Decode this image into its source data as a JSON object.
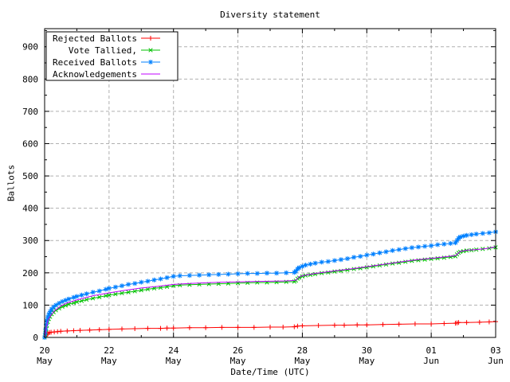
{
  "chart_data": {
    "type": "line",
    "title": "Diversity statement",
    "xlabel": "Date/Time (UTC)",
    "ylabel": "Ballots",
    "grid": true,
    "legend_position": "top-left",
    "x_unit": "days since 20 May 00:00 UTC",
    "xlim": [
      0,
      14
    ],
    "ylim": [
      0,
      956
    ],
    "y_major_ticks": [
      0,
      100,
      200,
      300,
      400,
      500,
      600,
      700,
      800,
      900
    ],
    "y_minor_step": 50,
    "x_major_ticks": [
      {
        "day": 0,
        "line1": "20",
        "line2": "May"
      },
      {
        "day": 2,
        "line1": "22",
        "line2": "May"
      },
      {
        "day": 4,
        "line1": "24",
        "line2": "May"
      },
      {
        "day": 6,
        "line1": "26",
        "line2": "May"
      },
      {
        "day": 8,
        "line1": "28",
        "line2": "May"
      },
      {
        "day": 10,
        "line1": "30",
        "line2": "May"
      },
      {
        "day": 12,
        "line1": "01",
        "line2": "Jun"
      },
      {
        "day": 14,
        "line1": "03",
        "line2": "Jun"
      }
    ],
    "x_minor_days": [
      1,
      3,
      5,
      7,
      9,
      11,
      13
    ],
    "colors": {
      "grid": "#b0b0b0",
      "border": "#000000",
      "rejected": "#ff0000",
      "tallied": "#00c000",
      "received": "#0080ff",
      "acknowledgements": "#c000ff"
    },
    "series": [
      {
        "name": "Rejected Ballots",
        "color": "#ff0000",
        "marker": "plus",
        "points": [
          [
            0,
            0
          ],
          [
            0.03,
            4
          ],
          [
            0.06,
            8
          ],
          [
            0.1,
            12
          ],
          [
            0.15,
            15
          ],
          [
            0.2,
            16
          ],
          [
            0.3,
            17
          ],
          [
            0.4,
            18
          ],
          [
            0.5,
            19
          ],
          [
            0.7,
            20
          ],
          [
            0.9,
            21
          ],
          [
            1.1,
            22
          ],
          [
            1.4,
            23
          ],
          [
            1.7,
            24
          ],
          [
            2.0,
            25
          ],
          [
            2.4,
            26
          ],
          [
            2.8,
            27
          ],
          [
            3.2,
            28
          ],
          [
            3.6,
            28
          ],
          [
            3.8,
            29
          ],
          [
            4.0,
            29
          ],
          [
            4.5,
            30
          ],
          [
            5.0,
            30
          ],
          [
            5.5,
            31
          ],
          [
            6.0,
            31
          ],
          [
            6.5,
            31
          ],
          [
            7.0,
            32
          ],
          [
            7.4,
            32
          ],
          [
            7.75,
            33
          ],
          [
            7.85,
            35
          ],
          [
            8.0,
            36
          ],
          [
            8.5,
            37
          ],
          [
            9.0,
            38
          ],
          [
            9.3,
            38
          ],
          [
            9.7,
            39
          ],
          [
            10.0,
            39
          ],
          [
            10.5,
            40
          ],
          [
            11.0,
            41
          ],
          [
            11.5,
            42
          ],
          [
            12.0,
            42
          ],
          [
            12.4,
            43
          ],
          [
            12.75,
            44
          ],
          [
            12.8,
            45
          ],
          [
            12.85,
            46
          ],
          [
            13.1,
            46
          ],
          [
            13.5,
            47
          ],
          [
            13.8,
            48
          ],
          [
            14.0,
            49
          ]
        ]
      },
      {
        "name": "Vote Tallied,",
        "color": "#00c000",
        "marker": "cross",
        "points": [
          [
            0,
            0
          ],
          [
            0.02,
            6
          ],
          [
            0.03,
            14
          ],
          [
            0.05,
            26
          ],
          [
            0.07,
            37
          ],
          [
            0.1,
            48
          ],
          [
            0.13,
            57
          ],
          [
            0.17,
            64
          ],
          [
            0.22,
            72
          ],
          [
            0.28,
            78
          ],
          [
            0.35,
            84
          ],
          [
            0.45,
            90
          ],
          [
            0.55,
            95
          ],
          [
            0.65,
            99
          ],
          [
            0.75,
            103
          ],
          [
            0.9,
            107
          ],
          [
            1.0,
            110
          ],
          [
            1.15,
            113
          ],
          [
            1.3,
            117
          ],
          [
            1.5,
            121
          ],
          [
            1.7,
            125
          ],
          [
            1.9,
            129
          ],
          [
            2.0,
            131
          ],
          [
            2.2,
            134
          ],
          [
            2.4,
            137
          ],
          [
            2.6,
            140
          ],
          [
            2.8,
            143
          ],
          [
            3.0,
            146
          ],
          [
            3.2,
            149
          ],
          [
            3.4,
            152
          ],
          [
            3.6,
            154
          ],
          [
            3.8,
            157
          ],
          [
            4.0,
            160
          ],
          [
            4.2,
            162
          ],
          [
            4.5,
            163
          ],
          [
            4.8,
            164
          ],
          [
            5.1,
            165
          ],
          [
            5.4,
            166
          ],
          [
            5.7,
            167
          ],
          [
            6.0,
            168
          ],
          [
            6.3,
            169
          ],
          [
            6.6,
            170
          ],
          [
            6.9,
            170
          ],
          [
            7.2,
            171
          ],
          [
            7.5,
            172
          ],
          [
            7.75,
            173
          ],
          [
            7.8,
            176
          ],
          [
            7.85,
            182
          ],
          [
            7.9,
            185
          ],
          [
            8.0,
            189
          ],
          [
            8.1,
            192
          ],
          [
            8.25,
            194
          ],
          [
            8.4,
            196
          ],
          [
            8.6,
            199
          ],
          [
            8.8,
            201
          ],
          [
            9.0,
            204
          ],
          [
            9.2,
            206
          ],
          [
            9.4,
            209
          ],
          [
            9.6,
            212
          ],
          [
            9.8,
            214
          ],
          [
            10.0,
            217
          ],
          [
            10.2,
            220
          ],
          [
            10.4,
            223
          ],
          [
            10.6,
            226
          ],
          [
            10.8,
            229
          ],
          [
            11.0,
            231
          ],
          [
            11.2,
            234
          ],
          [
            11.4,
            237
          ],
          [
            11.6,
            239
          ],
          [
            11.8,
            241
          ],
          [
            12.0,
            243
          ],
          [
            12.2,
            245
          ],
          [
            12.4,
            247
          ],
          [
            12.6,
            249
          ],
          [
            12.75,
            251
          ],
          [
            12.8,
            257
          ],
          [
            12.85,
            262
          ],
          [
            12.9,
            265
          ],
          [
            13.0,
            267
          ],
          [
            13.1,
            269
          ],
          [
            13.25,
            270
          ],
          [
            13.4,
            272
          ],
          [
            13.6,
            274
          ],
          [
            13.8,
            276
          ],
          [
            14.0,
            279
          ]
        ]
      },
      {
        "name": "Received Ballots",
        "color": "#0080ff",
        "marker": "asterisk",
        "points": [
          [
            0,
            0
          ],
          [
            0.02,
            12
          ],
          [
            0.03,
            25
          ],
          [
            0.05,
            40
          ],
          [
            0.07,
            52
          ],
          [
            0.1,
            63
          ],
          [
            0.13,
            72
          ],
          [
            0.17,
            80
          ],
          [
            0.22,
            88
          ],
          [
            0.28,
            94
          ],
          [
            0.35,
            100
          ],
          [
            0.45,
            106
          ],
          [
            0.55,
            111
          ],
          [
            0.65,
            115
          ],
          [
            0.75,
            119
          ],
          [
            0.9,
            124
          ],
          [
            1.0,
            127
          ],
          [
            1.15,
            131
          ],
          [
            1.3,
            135
          ],
          [
            1.5,
            140
          ],
          [
            1.7,
            144
          ],
          [
            1.9,
            149
          ],
          [
            2.0,
            152
          ],
          [
            2.2,
            156
          ],
          [
            2.4,
            160
          ],
          [
            2.6,
            164
          ],
          [
            2.8,
            167
          ],
          [
            3.0,
            171
          ],
          [
            3.2,
            174
          ],
          [
            3.4,
            178
          ],
          [
            3.6,
            181
          ],
          [
            3.8,
            185
          ],
          [
            4.0,
            189
          ],
          [
            4.2,
            191
          ],
          [
            4.5,
            192
          ],
          [
            4.8,
            193
          ],
          [
            5.1,
            194
          ],
          [
            5.4,
            195
          ],
          [
            5.7,
            196
          ],
          [
            6.0,
            197
          ],
          [
            6.3,
            198
          ],
          [
            6.6,
            198
          ],
          [
            6.9,
            199
          ],
          [
            7.2,
            199
          ],
          [
            7.5,
            200
          ],
          [
            7.75,
            201
          ],
          [
            7.8,
            205
          ],
          [
            7.85,
            212
          ],
          [
            7.9,
            216
          ],
          [
            8.0,
            220
          ],
          [
            8.1,
            224
          ],
          [
            8.25,
            227
          ],
          [
            8.4,
            230
          ],
          [
            8.6,
            233
          ],
          [
            8.8,
            235
          ],
          [
            9.0,
            238
          ],
          [
            9.2,
            241
          ],
          [
            9.4,
            244
          ],
          [
            9.6,
            248
          ],
          [
            9.8,
            251
          ],
          [
            10.0,
            255
          ],
          [
            10.2,
            258
          ],
          [
            10.4,
            262
          ],
          [
            10.6,
            265
          ],
          [
            10.8,
            269
          ],
          [
            11.0,
            272
          ],
          [
            11.2,
            275
          ],
          [
            11.4,
            278
          ],
          [
            11.6,
            280
          ],
          [
            11.8,
            282
          ],
          [
            12.0,
            284
          ],
          [
            12.2,
            287
          ],
          [
            12.4,
            289
          ],
          [
            12.6,
            291
          ],
          [
            12.75,
            293
          ],
          [
            12.8,
            300
          ],
          [
            12.85,
            307
          ],
          [
            12.9,
            311
          ],
          [
            13.0,
            314
          ],
          [
            13.1,
            316
          ],
          [
            13.25,
            318
          ],
          [
            13.4,
            320
          ],
          [
            13.6,
            322
          ],
          [
            13.8,
            324
          ],
          [
            14.0,
            327
          ]
        ]
      },
      {
        "name": "Acknowledgements",
        "color": "#c000ff",
        "marker": "none",
        "points": [
          [
            0,
            0
          ],
          [
            0.05,
            30
          ],
          [
            0.1,
            52
          ],
          [
            0.2,
            70
          ],
          [
            0.3,
            82
          ],
          [
            0.5,
            97
          ],
          [
            0.7,
            107
          ],
          [
            1.0,
            116
          ],
          [
            1.5,
            129
          ],
          [
            2.0,
            138
          ],
          [
            2.5,
            146
          ],
          [
            3.0,
            153
          ],
          [
            3.5,
            158
          ],
          [
            4.0,
            164
          ],
          [
            4.5,
            167
          ],
          [
            5.0,
            169
          ],
          [
            5.5,
            171
          ],
          [
            6.0,
            172
          ],
          [
            6.5,
            173
          ],
          [
            7.0,
            174
          ],
          [
            7.5,
            175
          ],
          [
            7.8,
            177
          ],
          [
            7.9,
            188
          ],
          [
            8.1,
            193
          ],
          [
            8.4,
            198
          ],
          [
            8.7,
            202
          ],
          [
            9.0,
            206
          ],
          [
            9.5,
            212
          ],
          [
            10.0,
            219
          ],
          [
            10.5,
            226
          ],
          [
            11.0,
            233
          ],
          [
            11.5,
            240
          ],
          [
            12.0,
            245
          ],
          [
            12.4,
            249
          ],
          [
            12.75,
            253
          ],
          [
            12.9,
            266
          ],
          [
            13.1,
            270
          ],
          [
            13.4,
            272
          ],
          [
            13.7,
            275
          ],
          [
            14.0,
            281
          ]
        ]
      }
    ]
  }
}
